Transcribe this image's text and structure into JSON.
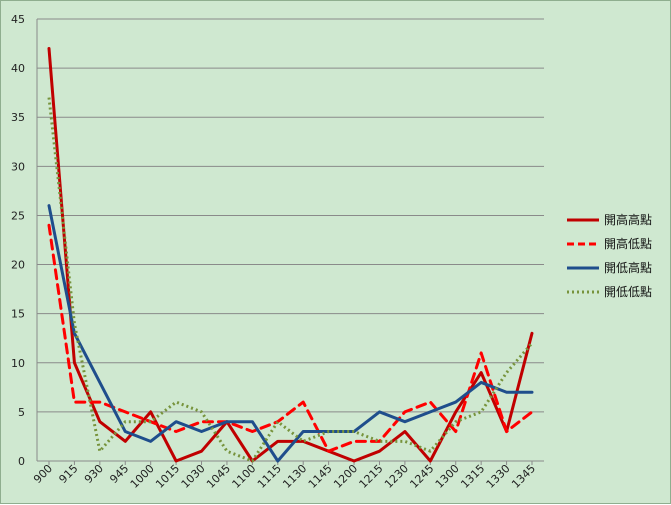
{
  "chart_data": {
    "type": "line",
    "title": "",
    "xlabel": "",
    "ylabel": "",
    "ylim": [
      0,
      45
    ],
    "yticks": [
      0,
      5,
      10,
      15,
      20,
      25,
      30,
      35,
      40,
      45
    ],
    "grid": "horizontal",
    "legend_position": "right",
    "categories": [
      "900",
      "915",
      "930",
      "945",
      "1000",
      "1015",
      "1030",
      "1045",
      "1100",
      "1115",
      "1130",
      "1145",
      "1200",
      "1215",
      "1230",
      "1245",
      "1300",
      "1315",
      "1330",
      "1345"
    ],
    "series": [
      {
        "name": "開高高點",
        "color": "#c00000",
        "style": "solid",
        "values": [
          42,
          10,
          4,
          2,
          5,
          0,
          1,
          4,
          0,
          2,
          2,
          1,
          0,
          1,
          3,
          0,
          5,
          9,
          3,
          13
        ]
      },
      {
        "name": "開高低點",
        "color": "#ff0000",
        "style": "dashed",
        "values": [
          24,
          6,
          6,
          5,
          4,
          3,
          4,
          4,
          3,
          4,
          6,
          1,
          2,
          2,
          5,
          6,
          3,
          11,
          3,
          5
        ]
      },
      {
        "name": "開低高點",
        "color": "#1f4e8c",
        "style": "solid",
        "values": [
          26,
          13,
          8,
          3,
          2,
          4,
          3,
          4,
          4,
          0,
          3,
          3,
          3,
          5,
          4,
          5,
          6,
          8,
          7,
          7
        ]
      },
      {
        "name": "開低低點",
        "color": "#77933c",
        "style": "dotted",
        "values": [
          37,
          14,
          1,
          4,
          4,
          6,
          5,
          1,
          0,
          4,
          2,
          3,
          3,
          2,
          2,
          1,
          4,
          5,
          9,
          12
        ]
      }
    ]
  }
}
